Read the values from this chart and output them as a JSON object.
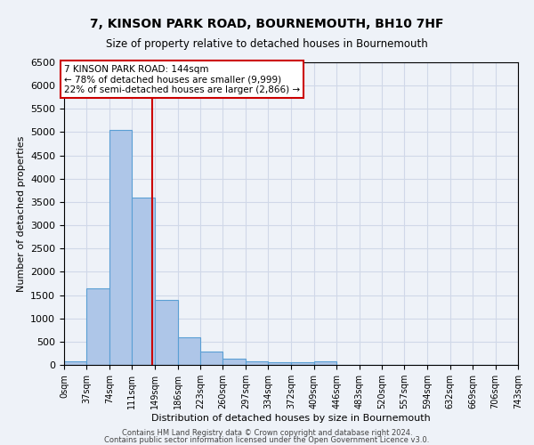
{
  "title": "7, KINSON PARK ROAD, BOURNEMOUTH, BH10 7HF",
  "subtitle": "Size of property relative to detached houses in Bournemouth",
  "xlabel": "Distribution of detached houses by size in Bournemouth",
  "ylabel": "Number of detached properties",
  "bar_edges": [
    0,
    37,
    74,
    111,
    149,
    186,
    223,
    260,
    297,
    334,
    372,
    409,
    446,
    483,
    520,
    557,
    594,
    632,
    669,
    706,
    743
  ],
  "bar_heights": [
    75,
    1650,
    5050,
    3600,
    1400,
    600,
    280,
    140,
    75,
    55,
    55,
    70,
    0,
    0,
    0,
    0,
    0,
    0,
    0,
    0
  ],
  "bar_color": "#aec6e8",
  "bar_edgecolor": "#5a9fd4",
  "property_line_x": 144,
  "property_line_color": "#cc0000",
  "ylim": [
    0,
    6500
  ],
  "annotation_text": "7 KINSON PARK ROAD: 144sqm\n← 78% of detached houses are smaller (9,999)\n22% of semi-detached houses are larger (2,866) →",
  "annotation_box_edgecolor": "#cc0000",
  "annotation_box_facecolor": "#ffffff",
  "grid_color": "#d0d8e8",
  "bg_color": "#eef2f8",
  "footer_line1": "Contains HM Land Registry data © Crown copyright and database right 2024.",
  "footer_line2": "Contains public sector information licensed under the Open Government Licence v3.0.",
  "tick_labels": [
    "0sqm",
    "37sqm",
    "74sqm",
    "111sqm",
    "149sqm",
    "186sqm",
    "223sqm",
    "260sqm",
    "297sqm",
    "334sqm",
    "372sqm",
    "409sqm",
    "446sqm",
    "483sqm",
    "520sqm",
    "557sqm",
    "594sqm",
    "632sqm",
    "669sqm",
    "706sqm",
    "743sqm"
  ],
  "yticks": [
    0,
    500,
    1000,
    1500,
    2000,
    2500,
    3000,
    3500,
    4000,
    4500,
    5000,
    5500,
    6000,
    6500
  ]
}
